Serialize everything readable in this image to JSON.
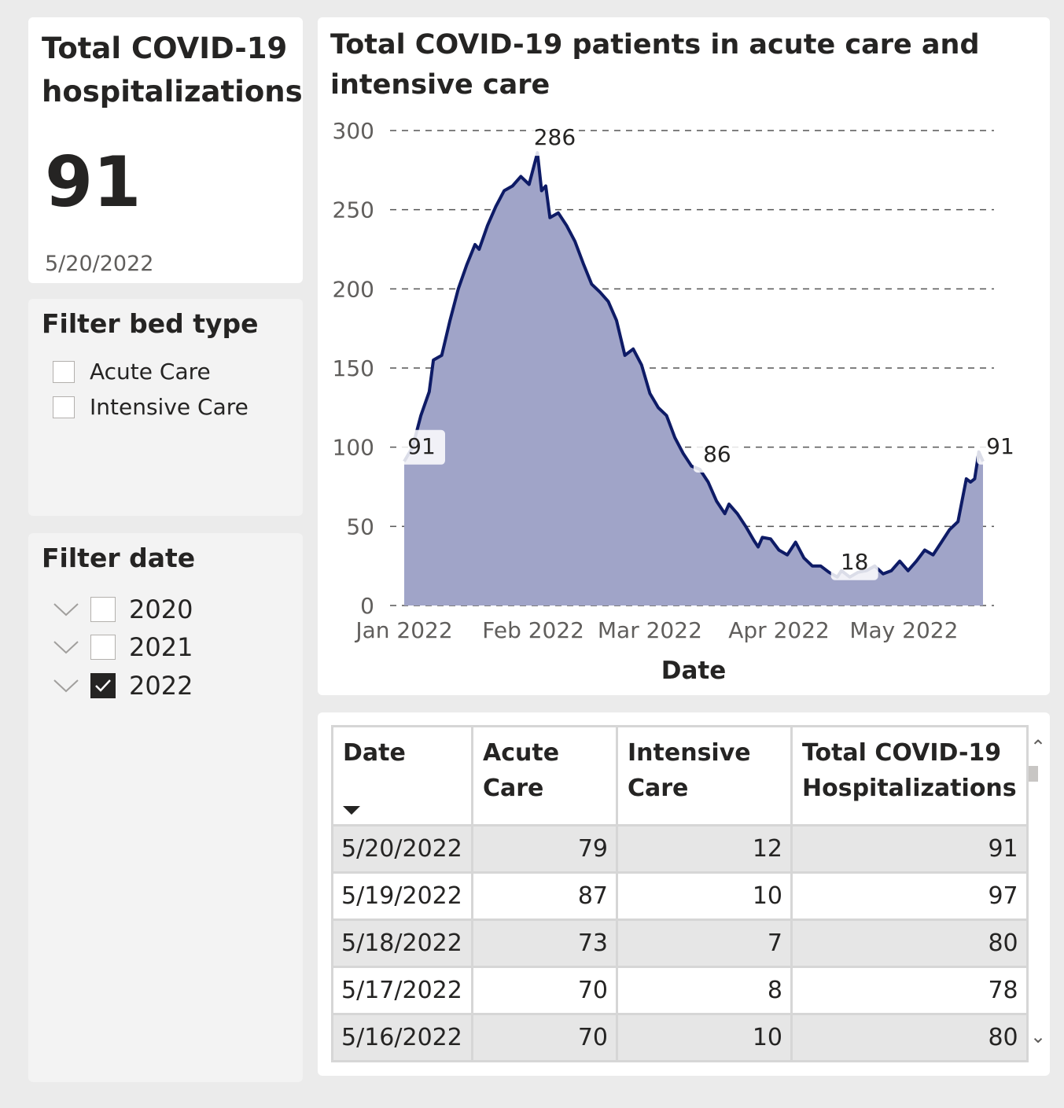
{
  "kpi": {
    "title": "Total COVID-19 hospitalizations",
    "value": "91",
    "date": "5/20/2022"
  },
  "filter_bed": {
    "title": "Filter bed type",
    "options": [
      {
        "label": "Acute Care",
        "checked": false
      },
      {
        "label": "Intensive Care",
        "checked": false
      }
    ]
  },
  "filter_date": {
    "title": "Filter date",
    "options": [
      {
        "label": "2020",
        "checked": false
      },
      {
        "label": "2021",
        "checked": false
      },
      {
        "label": "2022",
        "checked": true
      }
    ]
  },
  "chart": {
    "title": "Total COVID-19 patients in acute care and intensive care"
  },
  "chart_data": {
    "type": "area",
    "title": "Total COVID-19 patients in acute care and intensive care",
    "xlabel": "Date",
    "ylabel": "",
    "ylim": [
      0,
      300
    ],
    "yticks": [
      0,
      50,
      100,
      150,
      200,
      250,
      300
    ],
    "xticks": [
      {
        "date": "2022-01-01",
        "label": "Jan 2022"
      },
      {
        "date": "2022-02-01",
        "label": "Feb 2022"
      },
      {
        "date": "2022-03-01",
        "label": "Mar 2022"
      },
      {
        "date": "2022-04-01",
        "label": "Apr 2022"
      },
      {
        "date": "2022-05-01",
        "label": "May 2022"
      }
    ],
    "grid": true,
    "series": [
      {
        "points": [
          [
            "2022-01-01",
            91
          ],
          [
            "2022-01-03",
            100
          ],
          [
            "2022-01-05",
            120
          ],
          [
            "2022-01-07",
            135
          ],
          [
            "2022-01-08",
            155
          ],
          [
            "2022-01-10",
            158
          ],
          [
            "2022-01-12",
            180
          ],
          [
            "2022-01-14",
            200
          ],
          [
            "2022-01-16",
            215
          ],
          [
            "2022-01-18",
            228
          ],
          [
            "2022-01-19",
            225
          ],
          [
            "2022-01-21",
            240
          ],
          [
            "2022-01-23",
            252
          ],
          [
            "2022-01-25",
            262
          ],
          [
            "2022-01-27",
            265
          ],
          [
            "2022-01-29",
            271
          ],
          [
            "2022-01-31",
            266
          ],
          [
            "2022-02-02",
            286
          ],
          [
            "2022-02-03",
            262
          ],
          [
            "2022-02-04",
            265
          ],
          [
            "2022-02-05",
            245
          ],
          [
            "2022-02-07",
            248
          ],
          [
            "2022-02-09",
            240
          ],
          [
            "2022-02-11",
            230
          ],
          [
            "2022-02-13",
            216
          ],
          [
            "2022-02-15",
            203
          ],
          [
            "2022-02-17",
            198
          ],
          [
            "2022-02-19",
            192
          ],
          [
            "2022-02-21",
            180
          ],
          [
            "2022-02-23",
            158
          ],
          [
            "2022-02-25",
            162
          ],
          [
            "2022-02-27",
            152
          ],
          [
            "2022-03-01",
            134
          ],
          [
            "2022-03-03",
            125
          ],
          [
            "2022-03-05",
            120
          ],
          [
            "2022-03-07",
            106
          ],
          [
            "2022-03-09",
            96
          ],
          [
            "2022-03-11",
            88
          ],
          [
            "2022-03-13",
            86
          ],
          [
            "2022-03-15",
            78
          ],
          [
            "2022-03-17",
            66
          ],
          [
            "2022-03-19",
            58
          ],
          [
            "2022-03-20",
            64
          ],
          [
            "2022-03-22",
            58
          ],
          [
            "2022-03-24",
            50
          ],
          [
            "2022-03-26",
            41
          ],
          [
            "2022-03-27",
            37
          ],
          [
            "2022-03-28",
            43
          ],
          [
            "2022-03-30",
            42
          ],
          [
            "2022-04-01",
            35
          ],
          [
            "2022-04-03",
            32
          ],
          [
            "2022-04-05",
            40
          ],
          [
            "2022-04-07",
            30
          ],
          [
            "2022-04-09",
            25
          ],
          [
            "2022-04-11",
            25
          ],
          [
            "2022-04-13",
            21
          ],
          [
            "2022-04-15",
            18
          ],
          [
            "2022-04-16",
            22
          ],
          [
            "2022-04-18",
            18
          ],
          [
            "2022-04-20",
            21
          ],
          [
            "2022-04-22",
            22
          ],
          [
            "2022-04-24",
            25
          ],
          [
            "2022-04-26",
            20
          ],
          [
            "2022-04-28",
            22
          ],
          [
            "2022-04-30",
            28
          ],
          [
            "2022-05-02",
            22
          ],
          [
            "2022-05-04",
            28
          ],
          [
            "2022-05-06",
            35
          ],
          [
            "2022-05-08",
            32
          ],
          [
            "2022-05-10",
            40
          ],
          [
            "2022-05-12",
            48
          ],
          [
            "2022-05-14",
            53
          ],
          [
            "2022-05-16",
            80
          ],
          [
            "2022-05-17",
            78
          ],
          [
            "2022-05-18",
            80
          ],
          [
            "2022-05-19",
            97
          ],
          [
            "2022-05-20",
            91
          ]
        ]
      }
    ],
    "data_labels": [
      {
        "date": "2022-01-01",
        "value": 91,
        "text": "91"
      },
      {
        "date": "2022-02-02",
        "value": 286,
        "text": "286"
      },
      {
        "date": "2022-03-13",
        "value": 86,
        "text": "86"
      },
      {
        "date": "2022-04-15",
        "value": 18,
        "text": "18"
      },
      {
        "date": "2022-05-20",
        "value": 91,
        "text": "91"
      }
    ],
    "colors": {
      "line": "#0e1b66",
      "fill": "#a0a4c8",
      "grid": "#555555"
    }
  },
  "table": {
    "headers": [
      "Date",
      "Acute Care",
      "Intensive Care",
      "Total COVID-19 Hospitalizations"
    ],
    "rows": [
      [
        "5/20/2022",
        "79",
        "12",
        "91"
      ],
      [
        "5/19/2022",
        "87",
        "10",
        "97"
      ],
      [
        "5/18/2022",
        "73",
        "7",
        "80"
      ],
      [
        "5/17/2022",
        "70",
        "8",
        "78"
      ],
      [
        "5/16/2022",
        "70",
        "10",
        "80"
      ]
    ]
  }
}
